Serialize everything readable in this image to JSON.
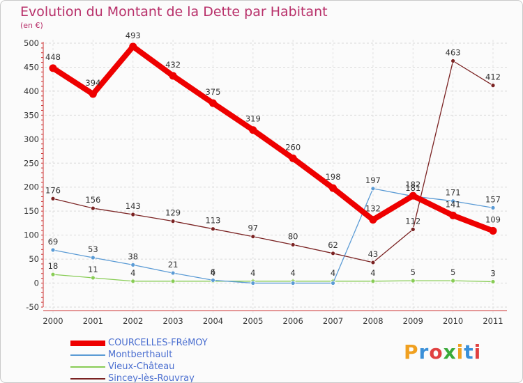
{
  "chart_data": {
    "type": "line",
    "title": "Evolution du Montant de la Dette par Habitant",
    "subtitle": "(en €)",
    "x": [
      "2000",
      "2001",
      "2002",
      "2003",
      "2004",
      "2005",
      "2006",
      "2007",
      "2008",
      "2009",
      "2010",
      "2011"
    ],
    "y_ticks": [
      "-50",
      "0",
      "50",
      "100",
      "150",
      "200",
      "250",
      "300",
      "350",
      "400",
      "450",
      "500"
    ],
    "ylim": [
      -50,
      500
    ],
    "grid": true,
    "legend_placement": "bottom-left",
    "series": [
      {
        "name": "COURCELLES-FRéMOY",
        "color": "#ee0000",
        "values": [
          448,
          394,
          493,
          432,
          375,
          319,
          260,
          198,
          132,
          182,
          141,
          109
        ],
        "labels": [
          "448",
          "394",
          "493",
          "432",
          "375",
          "319",
          "260",
          "198",
          "132",
          "182",
          "141",
          "109"
        ]
      },
      {
        "name": "Montberthault",
        "color": "#5b9bd5",
        "values": [
          69,
          53,
          38,
          21,
          6,
          0,
          0,
          0,
          197,
          181,
          171,
          157
        ],
        "labels": [
          "69",
          "53",
          "38",
          "21",
          "6",
          "",
          "",
          "",
          "197",
          "181",
          "171",
          "157"
        ]
      },
      {
        "name": "Vieux-Château",
        "color": "#88cc55",
        "values": [
          18,
          11,
          4,
          4,
          4,
          4,
          4,
          4,
          4,
          5,
          5,
          3
        ],
        "labels": [
          "18",
          "11",
          "4",
          "",
          "4",
          "4",
          "4",
          "4",
          "4",
          "5",
          "5",
          "3"
        ]
      },
      {
        "name": "Sincey-lès-Rouvray",
        "color": "#7a2222",
        "values": [
          176,
          156,
          143,
          129,
          113,
          97,
          80,
          62,
          43,
          112,
          463,
          412
        ],
        "labels": [
          "176",
          "156",
          "143",
          "129",
          "113",
          "97",
          "80",
          "62",
          "43",
          "112",
          "463",
          "412"
        ]
      }
    ]
  },
  "logo": {
    "letters": [
      "P",
      "r",
      "o",
      "x",
      "i",
      "t",
      "i"
    ],
    "colors": [
      "#f0a020",
      "#3a8fd8",
      "#e04040",
      "#3aaa3a",
      "#f0a020",
      "#3a8fd8",
      "#e04040"
    ]
  }
}
